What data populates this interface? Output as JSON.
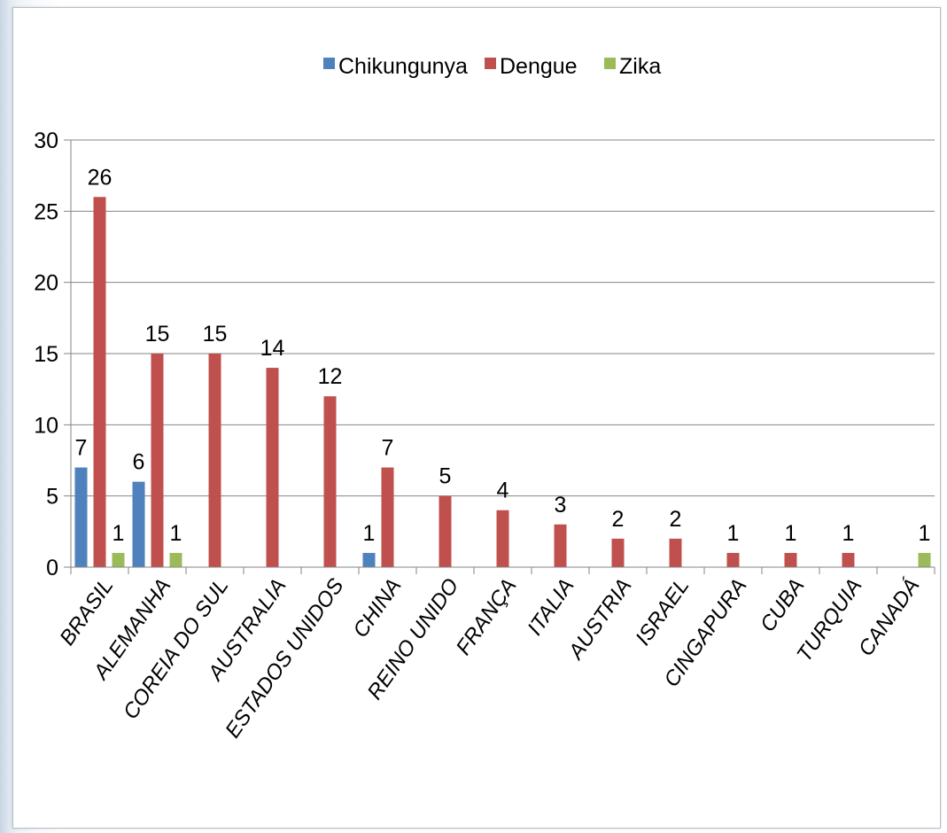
{
  "chart_data": {
    "type": "bar",
    "title": "",
    "xlabel": "",
    "ylabel": "",
    "ylim": [
      0,
      30
    ],
    "yticks": [
      "0",
      "5",
      "10",
      "15",
      "20",
      "25",
      "30"
    ],
    "grid": true,
    "legend_position": "top",
    "categories": [
      "BRASIL",
      "ALEMANHA",
      "COREIA DO SUL",
      "AUSTRALIA",
      "ESTADOS UNIDOS",
      "CHINA",
      "REINO UNIDO",
      "FRANÇA",
      "ITALIA",
      "AUSTRIA",
      "ISRAEL",
      "CINGAPURA",
      "CUBA",
      "TURQUIA",
      "CANADÁ"
    ],
    "series": [
      {
        "name": "Chikungunya",
        "color": "#4f81bd",
        "values": [
          7,
          6,
          0,
          0,
          0,
          1,
          0,
          0,
          0,
          0,
          0,
          0,
          0,
          0,
          0
        ],
        "labels": [
          "7",
          "6",
          "",
          "",
          "",
          "1",
          "",
          "",
          "",
          "",
          "",
          "",
          "",
          "",
          ""
        ]
      },
      {
        "name": "Dengue",
        "color": "#c0504d",
        "values": [
          26,
          15,
          15,
          14,
          12,
          7,
          5,
          4,
          3,
          2,
          2,
          1,
          1,
          1,
          0
        ],
        "labels": [
          "26",
          "15",
          "15",
          "14",
          "12",
          "7",
          "5",
          "4",
          "3",
          "2",
          "2",
          "1",
          "1",
          "1",
          ""
        ]
      },
      {
        "name": "Zika",
        "color": "#9bbb59",
        "values": [
          1,
          1,
          0,
          0,
          0,
          0,
          0,
          0,
          0,
          0,
          0,
          0,
          0,
          0,
          1
        ],
        "labels": [
          "1",
          "1",
          "",
          "",
          "",
          "",
          "",
          "",
          "",
          "",
          "",
          "",
          "",
          "",
          "1"
        ]
      }
    ]
  }
}
